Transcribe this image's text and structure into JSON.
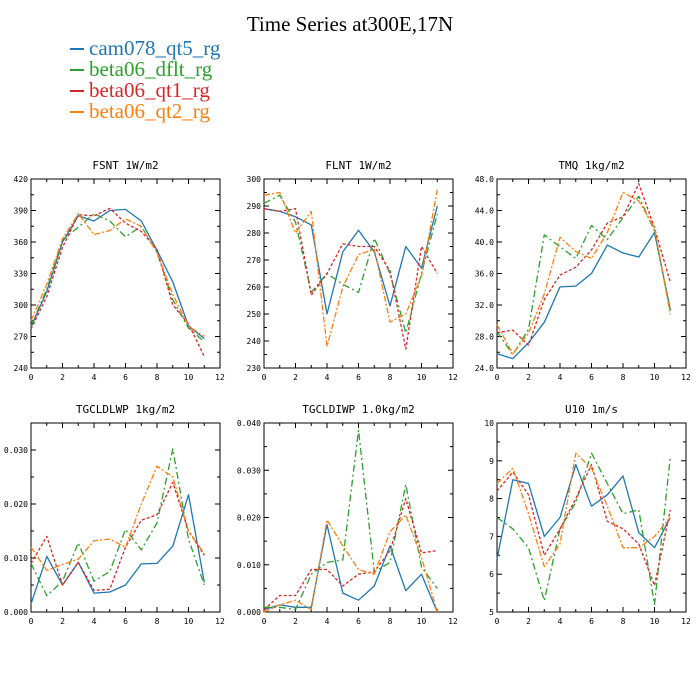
{
  "title": "Time Series at300E,17N",
  "legend": [
    {
      "name": "cam078_qt5_rg",
      "color": "#1f77b4"
    },
    {
      "name": "beta06_dflt_rg",
      "color": "#2ca02c"
    },
    {
      "name": "beta06_qt1_rg",
      "color": "#d62728"
    },
    {
      "name": "beta06_qt2_rg",
      "color": "#ff7f0e"
    }
  ],
  "chart_data": [
    {
      "type": "line",
      "title": "FSNT  1W/m2",
      "x": [
        0,
        1,
        2,
        3,
        4,
        5,
        6,
        7,
        8,
        9,
        10,
        11
      ],
      "xlim": [
        0,
        12
      ],
      "xticks": [
        0,
        2,
        4,
        6,
        8,
        10,
        12
      ],
      "ylim": [
        240,
        420
      ],
      "yticks": [
        240,
        270,
        300,
        330,
        360,
        390,
        420
      ],
      "ytick_labels": [
        "240",
        "270",
        "300",
        "330",
        "360",
        "390",
        "420"
      ],
      "series": [
        {
          "name": "cam078_qt5_rg",
          "values": [
            279,
            313,
            360,
            385,
            380,
            390,
            391,
            380,
            352,
            322,
            280,
            268
          ]
        },
        {
          "name": "beta06_dflt_rg",
          "values": [
            280,
            315,
            362,
            374,
            387,
            380,
            365,
            375,
            350,
            305,
            278,
            265
          ]
        },
        {
          "name": "beta06_qt1_rg",
          "values": [
            277,
            308,
            355,
            386,
            385,
            392,
            378,
            370,
            353,
            300,
            282,
            251
          ]
        },
        {
          "name": "beta06_qt2_rg",
          "values": [
            285,
            320,
            363,
            387,
            367,
            371,
            382,
            375,
            350,
            310,
            280,
            270
          ]
        }
      ]
    },
    {
      "type": "line",
      "title": "FLNT  1W/m2",
      "x": [
        0,
        1,
        2,
        3,
        4,
        5,
        6,
        7,
        8,
        9,
        10,
        11
      ],
      "xlim": [
        0,
        12
      ],
      "xticks": [
        0,
        2,
        4,
        6,
        8,
        10,
        12
      ],
      "ylim": [
        230,
        300
      ],
      "yticks": [
        230,
        240,
        250,
        260,
        270,
        280,
        290,
        300
      ],
      "ytick_labels": [
        "230",
        "240",
        "250",
        "260",
        "270",
        "280",
        "290",
        "300"
      ],
      "series": [
        {
          "name": "cam078_qt5_rg",
          "values": [
            289,
            288,
            286,
            283,
            250,
            273,
            281,
            273,
            253,
            275,
            267,
            290
          ]
        },
        {
          "name": "beta06_dflt_rg",
          "values": [
            291,
            294,
            284,
            258,
            265,
            261,
            258,
            278,
            265,
            243,
            265,
            287
          ]
        },
        {
          "name": "beta06_qt1_rg",
          "values": [
            289,
            288,
            289,
            257,
            265,
            276,
            275,
            275,
            266,
            237,
            275,
            265
          ]
        },
        {
          "name": "beta06_qt2_rg",
          "values": [
            294,
            295,
            280,
            288,
            238,
            260,
            272,
            274,
            247,
            250,
            264,
            296
          ]
        }
      ]
    },
    {
      "type": "line",
      "title": "TMQ  1kg/m2",
      "x": [
        0,
        1,
        2,
        3,
        4,
        5,
        6,
        7,
        8,
        9,
        10,
        11
      ],
      "xlim": [
        0,
        12
      ],
      "xticks": [
        0,
        2,
        4,
        6,
        8,
        10,
        12
      ],
      "ylim": [
        24,
        48
      ],
      "yticks": [
        24,
        28,
        32,
        36,
        40,
        44,
        48
      ],
      "ytick_labels": [
        "24.0",
        "28.0",
        "32.0",
        "36.0",
        "40.0",
        "44.0",
        "48.0"
      ],
      "series": [
        {
          "name": "cam078_qt5_rg",
          "values": [
            25.8,
            25.2,
            27.2,
            29.8,
            34.3,
            34.4,
            36.0,
            39.6,
            38.6,
            38.1,
            41.2,
            31.4
          ]
        },
        {
          "name": "beta06_dflt_rg",
          "values": [
            28.6,
            25.7,
            28.9,
            40.9,
            39.4,
            37.9,
            42.1,
            40.3,
            43.1,
            45.8,
            41.4,
            31.3
          ]
        },
        {
          "name": "beta06_qt1_rg",
          "values": [
            28.5,
            28.8,
            26.9,
            32.7,
            35.8,
            36.8,
            39.0,
            42.4,
            43.2,
            47.4,
            41.8,
            34.9
          ]
        },
        {
          "name": "beta06_qt2_rg",
          "values": [
            29.5,
            25.8,
            28.4,
            33.4,
            40.6,
            38.8,
            37.9,
            41.2,
            46.3,
            45.2,
            41.8,
            30.8
          ]
        }
      ]
    },
    {
      "type": "line",
      "title": "TGCLDLWP  1kg/m2",
      "x": [
        0,
        1,
        2,
        3,
        4,
        5,
        6,
        7,
        8,
        9,
        10,
        11
      ],
      "xlim": [
        0,
        12
      ],
      "xticks": [
        0,
        2,
        4,
        6,
        8,
        10,
        12
      ],
      "ylim": [
        0,
        0.035
      ],
      "yticks": [
        0,
        0.01,
        0.02,
        0.03
      ],
      "ytick_labels": [
        "0.000",
        "0.010",
        "0.020",
        "0.030"
      ],
      "series": [
        {
          "name": "cam078_qt5_rg",
          "values": [
            0.0015,
            0.0103,
            0.005,
            0.0092,
            0.0035,
            0.0037,
            0.005,
            0.0089,
            0.009,
            0.0122,
            0.0217,
            0.0055
          ]
        },
        {
          "name": "beta06_dflt_rg",
          "values": [
            0.009,
            0.003,
            0.0057,
            0.0128,
            0.0057,
            0.0075,
            0.0153,
            0.0115,
            0.0165,
            0.0302,
            0.0135,
            0.005
          ]
        },
        {
          "name": "beta06_qt1_rg",
          "values": [
            0.009,
            0.014,
            0.005,
            0.0092,
            0.004,
            0.0042,
            0.012,
            0.017,
            0.018,
            0.024,
            0.015,
            0.0105
          ]
        },
        {
          "name": "beta06_qt2_rg",
          "values": [
            0.012,
            0.0077,
            0.0088,
            0.0098,
            0.0132,
            0.0135,
            0.012,
            0.02,
            0.027,
            0.025,
            0.015,
            0.0108
          ]
        }
      ]
    },
    {
      "type": "line",
      "title": "TGCLDIWP  1.0kg/m2",
      "x": [
        0,
        1,
        2,
        3,
        4,
        5,
        6,
        7,
        8,
        9,
        10,
        11
      ],
      "xlim": [
        0,
        12
      ],
      "xticks": [
        0,
        2,
        4,
        6,
        8,
        10,
        12
      ],
      "ylim": [
        0,
        0.04
      ],
      "yticks": [
        0,
        0.01,
        0.02,
        0.03,
        0.04
      ],
      "ytick_labels": [
        "0.000",
        "0.010",
        "0.020",
        "0.030",
        "0.040"
      ],
      "series": [
        {
          "name": "cam078_qt5_rg",
          "values": [
            0.0005,
            0.0015,
            0.001,
            0.001,
            0.0185,
            0.004,
            0.0025,
            0.0055,
            0.014,
            0.0045,
            0.008,
            0.0
          ]
        },
        {
          "name": "beta06_dflt_rg",
          "values": [
            0.001,
            0.001,
            0.0005,
            0.008,
            0.0105,
            0.011,
            0.0385,
            0.0085,
            0.0105,
            0.027,
            0.0095,
            0.005
          ]
        },
        {
          "name": "beta06_qt1_rg",
          "values": [
            0.0005,
            0.0035,
            0.0035,
            0.009,
            0.009,
            0.0055,
            0.008,
            0.0085,
            0.013,
            0.024,
            0.0125,
            0.013
          ]
        },
        {
          "name": "beta06_qt2_rg",
          "values": [
            0.0,
            0.0015,
            0.0025,
            0.0005,
            0.0195,
            0.014,
            0.009,
            0.008,
            0.017,
            0.0205,
            0.0115,
            0.0
          ]
        }
      ]
    },
    {
      "type": "line",
      "title": "U10  1m/s",
      "x": [
        0,
        1,
        2,
        3,
        4,
        5,
        6,
        7,
        8,
        9,
        10,
        11
      ],
      "xlim": [
        0,
        12
      ],
      "xticks": [
        0,
        2,
        4,
        6,
        8,
        10,
        12
      ],
      "ylim": [
        5,
        10
      ],
      "yticks": [
        5,
        6,
        7,
        8,
        9,
        10
      ],
      "ytick_labels": [
        "5",
        "6",
        "7",
        "8",
        "9",
        "10"
      ],
      "series": [
        {
          "name": "cam078_qt5_rg",
          "values": [
            6.4,
            8.5,
            8.4,
            7.0,
            7.5,
            8.9,
            7.8,
            8.1,
            8.6,
            7.1,
            6.7,
            7.5
          ]
        },
        {
          "name": "beta06_dflt_rg",
          "values": [
            7.5,
            7.2,
            6.7,
            5.3,
            7.2,
            7.9,
            9.2,
            8.4,
            7.6,
            7.7,
            5.2,
            9.1
          ]
        },
        {
          "name": "beta06_qt1_rg",
          "values": [
            8.2,
            8.7,
            8.1,
            6.5,
            7.2,
            8.0,
            8.9,
            7.4,
            7.2,
            6.8,
            5.7,
            7.7
          ]
        },
        {
          "name": "beta06_qt2_rg",
          "values": [
            8.4,
            8.8,
            7.6,
            6.2,
            6.8,
            9.2,
            8.8,
            7.8,
            6.7,
            6.7,
            7.0,
            7.5
          ]
        }
      ]
    }
  ]
}
